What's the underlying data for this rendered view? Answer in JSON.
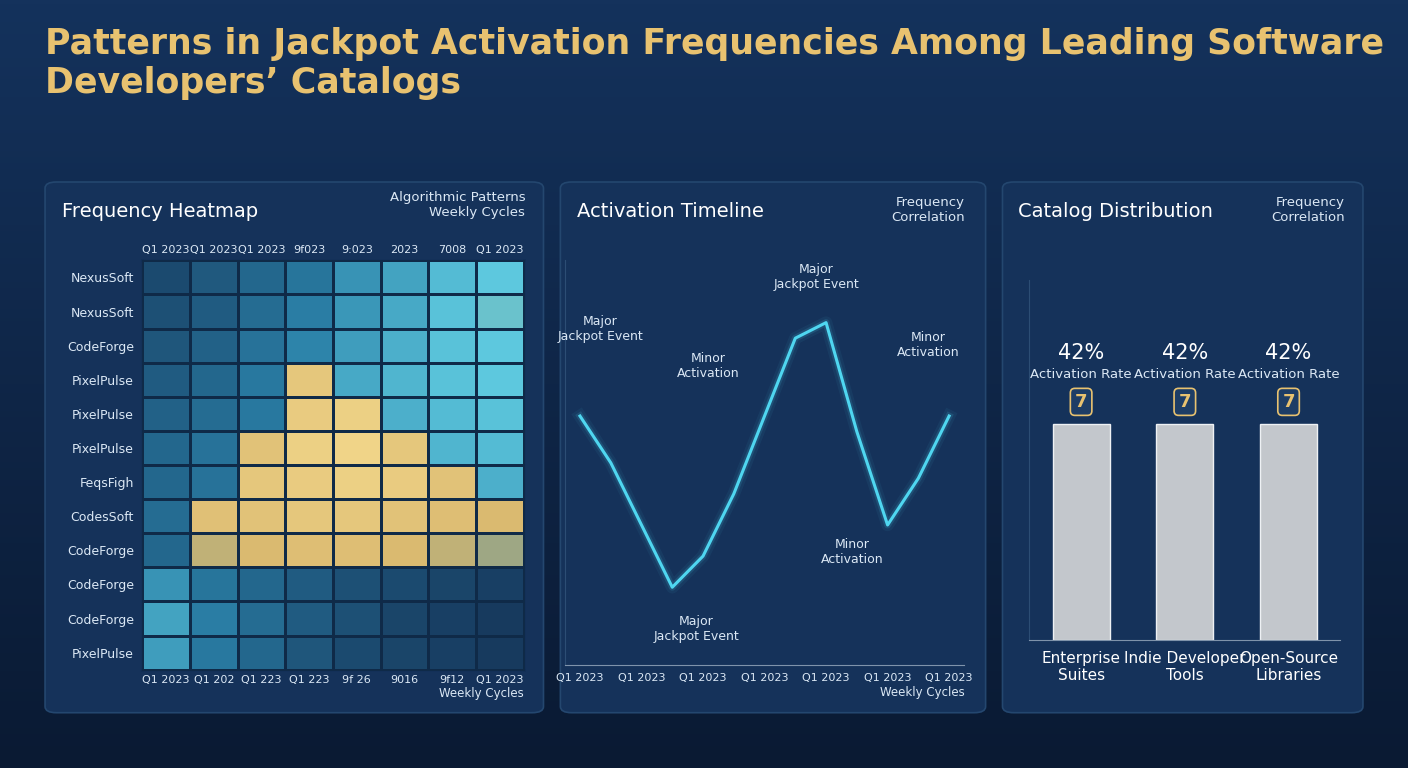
{
  "title": "Patterns in Jackpot Activation Frequencies Among Leading Software Developers’ Catalogs",
  "chart_data": [
    {
      "type": "heatmap",
      "title": "Frequency Heatmap",
      "subtitle": "Algorithmic Patterns\nWeekly Cycles",
      "categories": [
        "Q1 2023",
        "Q1 202",
        "Q1 223",
        "Q1 223",
        "9f 26",
        "9016",
        "9f12",
        "Q1 2023"
      ],
      "top_categories": [
        "Q1 2023",
        "Q1 2023",
        "Q1 2023",
        "9f023",
        "9:023",
        "2023",
        "7008",
        "Q1 2023"
      ],
      "x_label": "Weekly Cycles",
      "rows": [
        "NexusSoft",
        "NexusSoft",
        "CodeForge",
        "PixelPulse",
        "PixelPulse",
        "PixelPulse",
        "FeqsFigh",
        "CodesSoft",
        "CodeForge",
        "CodeForge",
        "CodeForge",
        "PixelPulse"
      ],
      "cells": [
        [
          30,
          35,
          40,
          45,
          55,
          60,
          68,
          72
        ],
        [
          32,
          36,
          42,
          48,
          56,
          62,
          70,
          74
        ],
        [
          34,
          38,
          44,
          50,
          58,
          64,
          70,
          72
        ],
        [
          36,
          40,
          46,
          88,
          62,
          66,
          70,
          72
        ],
        [
          38,
          42,
          46,
          90,
          92,
          64,
          68,
          70
        ],
        [
          40,
          44,
          86,
          92,
          94,
          88,
          66,
          68
        ],
        [
          40,
          44,
          88,
          90,
          92,
          90,
          86,
          64
        ],
        [
          42,
          85,
          86,
          88,
          88,
          86,
          84,
          82
        ],
        [
          40,
          80,
          82,
          84,
          84,
          82,
          80,
          78
        ],
        [
          55,
          45,
          40,
          36,
          32,
          30,
          28,
          26
        ],
        [
          60,
          48,
          42,
          36,
          32,
          28,
          26,
          24
        ],
        [
          58,
          46,
          40,
          34,
          30,
          28,
          26,
          24
        ]
      ]
    },
    {
      "type": "line",
      "title": "Activation Timeline",
      "subtitle": "Frequency\nCorrelation",
      "categories": [
        "Q1 2023",
        null,
        "Q1 2023",
        null,
        "Q1 2023",
        null,
        "Q1 2023",
        null,
        "Q1 2023",
        null,
        "Q1 2023",
        null,
        "Q1 2023"
      ],
      "values": [
        4,
        1,
        -3,
        -7,
        -5,
        -1,
        4,
        9,
        10,
        3,
        -3,
        0,
        4
      ],
      "ylim": [
        -12,
        14
      ],
      "tick_labels": "x",
      "x_label": "Weekly Cycles",
      "color": "#4fd6f0",
      "annotations": [
        "Major\nJackpot Event",
        "Minor\nActivation",
        "Major\nJackpot Event",
        "Minor\nActivation",
        "Minor\nActivation",
        "Major\nJackpot Event"
      ]
    },
    {
      "type": "bar",
      "title": "Catalog Distribution",
      "subtitle": "Frequency\nCorrelation",
      "categories": [
        "Enterprise Suites",
        "Indie Developer Tools",
        "Open-Source Libraries"
      ],
      "values": [
        42,
        42,
        42
      ],
      "value_labels": [
        "42%",
        "42%",
        "42%"
      ],
      "data_labels": true,
      "value_caption": "Activation Rate",
      "icon": "7",
      "ylim": [
        0,
        70
      ],
      "tick_labels": "x",
      "color": "#c3c7cc"
    }
  ]
}
